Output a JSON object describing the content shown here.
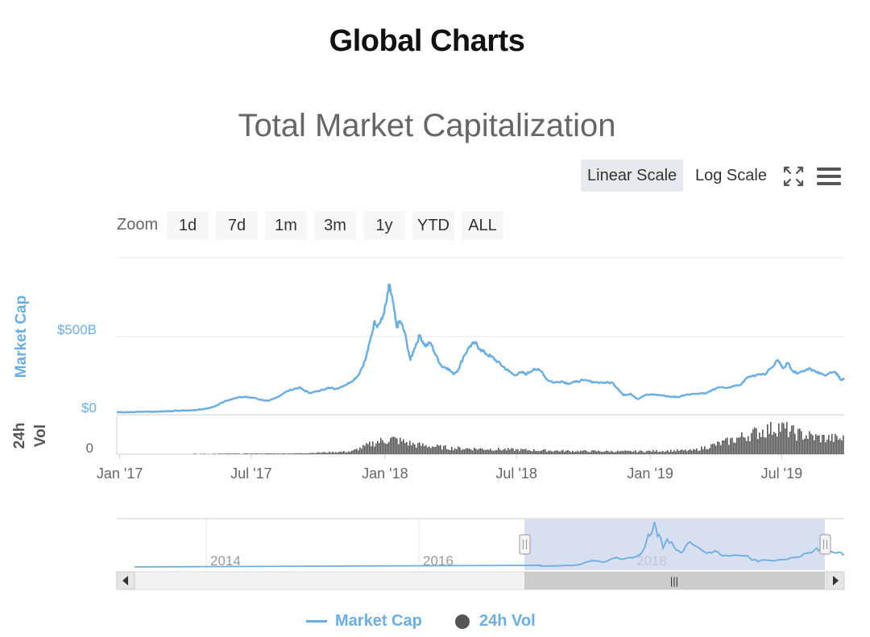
{
  "page": {
    "title": "Global Charts"
  },
  "chart": {
    "title": "Total Market Capitalization",
    "scale_buttons": [
      {
        "label": "Linear Scale",
        "active": true
      },
      {
        "label": "Log Scale",
        "active": false
      }
    ],
    "zoom": {
      "label": "Zoom",
      "buttons": [
        "1d",
        "7d",
        "1m",
        "3m",
        "1y",
        "YTD",
        "ALL"
      ]
    },
    "y_axis_label": "Market Cap",
    "y_ticks": [
      "$500B",
      "$0"
    ],
    "vol_axis_label": "24h Vol",
    "vol_ticks": [
      "0"
    ],
    "x_ticks": [
      "Jan '17",
      "Jul '17",
      "Jan '18",
      "Jul '18",
      "Jan '19",
      "Jul '19"
    ],
    "navigator_ticks": [
      "2014",
      "2016",
      "2018"
    ],
    "navigator_handle_glyph": "|||",
    "colors": {
      "market_cap": "#6aaee3",
      "volume": "#555555",
      "navigator_mask": "#c9d4ec"
    },
    "legend": [
      {
        "label": "Market Cap",
        "marker": "line"
      },
      {
        "label": "24h Vol",
        "marker": "circle"
      }
    ]
  },
  "chart_data": {
    "type": "line",
    "title": "Total Market Capitalization",
    "xlabel": "",
    "ylabel": "Market Cap",
    "x_range": [
      "2016-12-28",
      "2019-09-25"
    ],
    "ylim": [
      0,
      800
    ],
    "y_unit": "billion USD",
    "grid": true,
    "legend_position": "bottom-center",
    "series": [
      {
        "name": "Market Cap",
        "color": "#6aaee3",
        "points": [
          [
            "2016-12-28",
            17
          ],
          [
            "2017-01-15",
            17
          ],
          [
            "2017-02-01",
            19
          ],
          [
            "2017-02-20",
            20
          ],
          [
            "2017-03-10",
            23
          ],
          [
            "2017-03-25",
            26
          ],
          [
            "2017-04-10",
            28
          ],
          [
            "2017-04-25",
            35
          ],
          [
            "2017-05-10",
            50
          ],
          [
            "2017-05-25",
            85
          ],
          [
            "2017-06-05",
            100
          ],
          [
            "2017-06-15",
            115
          ],
          [
            "2017-06-25",
            112
          ],
          [
            "2017-07-05",
            108
          ],
          [
            "2017-07-15",
            95
          ],
          [
            "2017-07-25",
            88
          ],
          [
            "2017-08-05",
            110
          ],
          [
            "2017-08-15",
            140
          ],
          [
            "2017-08-25",
            160
          ],
          [
            "2017-09-05",
            175
          ],
          [
            "2017-09-12",
            155
          ],
          [
            "2017-09-20",
            140
          ],
          [
            "2017-10-01",
            150
          ],
          [
            "2017-10-15",
            175
          ],
          [
            "2017-10-25",
            165
          ],
          [
            "2017-11-05",
            185
          ],
          [
            "2017-11-15",
            210
          ],
          [
            "2017-11-25",
            250
          ],
          [
            "2017-12-05",
            350
          ],
          [
            "2017-12-12",
            480
          ],
          [
            "2017-12-18",
            600
          ],
          [
            "2017-12-22",
            570
          ],
          [
            "2017-12-28",
            610
          ],
          [
            "2018-01-03",
            720
          ],
          [
            "2018-01-07",
            830
          ],
          [
            "2018-01-12",
            720
          ],
          [
            "2018-01-17",
            560
          ],
          [
            "2018-01-22",
            600
          ],
          [
            "2018-01-28",
            530
          ],
          [
            "2018-02-05",
            350
          ],
          [
            "2018-02-10",
            420
          ],
          [
            "2018-02-18",
            510
          ],
          [
            "2018-02-25",
            440
          ],
          [
            "2018-03-05",
            460
          ],
          [
            "2018-03-12",
            380
          ],
          [
            "2018-03-20",
            310
          ],
          [
            "2018-03-28",
            300
          ],
          [
            "2018-04-05",
            260
          ],
          [
            "2018-04-12",
            290
          ],
          [
            "2018-04-20",
            380
          ],
          [
            "2018-04-28",
            440
          ],
          [
            "2018-05-05",
            460
          ],
          [
            "2018-05-12",
            420
          ],
          [
            "2018-05-20",
            390
          ],
          [
            "2018-05-28",
            370
          ],
          [
            "2018-06-05",
            340
          ],
          [
            "2018-06-12",
            310
          ],
          [
            "2018-06-20",
            280
          ],
          [
            "2018-06-28",
            255
          ],
          [
            "2018-07-08",
            270
          ],
          [
            "2018-07-15",
            260
          ],
          [
            "2018-07-25",
            295
          ],
          [
            "2018-08-05",
            275
          ],
          [
            "2018-08-12",
            225
          ],
          [
            "2018-08-22",
            205
          ],
          [
            "2018-09-01",
            215
          ],
          [
            "2018-09-10",
            200
          ],
          [
            "2018-09-20",
            210
          ],
          [
            "2018-10-01",
            220
          ],
          [
            "2018-10-15",
            210
          ],
          [
            "2018-10-30",
            205
          ],
          [
            "2018-11-10",
            205
          ],
          [
            "2018-11-18",
            165
          ],
          [
            "2018-11-25",
            125
          ],
          [
            "2018-12-05",
            135
          ],
          [
            "2018-12-15",
            100
          ],
          [
            "2018-12-25",
            125
          ],
          [
            "2019-01-05",
            130
          ],
          [
            "2019-01-15",
            125
          ],
          [
            "2019-01-30",
            115
          ],
          [
            "2019-02-08",
            113
          ],
          [
            "2019-02-20",
            130
          ],
          [
            "2019-03-05",
            135
          ],
          [
            "2019-03-20",
            140
          ],
          [
            "2019-04-02",
            170
          ],
          [
            "2019-04-20",
            175
          ],
          [
            "2019-05-05",
            190
          ],
          [
            "2019-05-15",
            240
          ],
          [
            "2019-05-30",
            260
          ],
          [
            "2019-06-10",
            265
          ],
          [
            "2019-06-26",
            350
          ],
          [
            "2019-07-02",
            300
          ],
          [
            "2019-07-10",
            330
          ],
          [
            "2019-07-18",
            270
          ],
          [
            "2019-07-28",
            275
          ],
          [
            "2019-08-08",
            300
          ],
          [
            "2019-08-18",
            270
          ],
          [
            "2019-08-28",
            255
          ],
          [
            "2019-09-08",
            270
          ],
          [
            "2019-09-15",
            265
          ],
          [
            "2019-09-20",
            225
          ],
          [
            "2019-09-25",
            225
          ]
        ]
      },
      {
        "name": "24h Vol",
        "color": "#555555",
        "type": "column",
        "note_unit": "relative",
        "points": [
          [
            "2017-01-01",
            0
          ],
          [
            "2017-06-01",
            0.02
          ],
          [
            "2017-09-01",
            0.03
          ],
          [
            "2017-11-15",
            0.1
          ],
          [
            "2017-12-20",
            0.45
          ],
          [
            "2018-01-10",
            0.55
          ],
          [
            "2018-02-10",
            0.35
          ],
          [
            "2018-04-01",
            0.22
          ],
          [
            "2018-06-01",
            0.18
          ],
          [
            "2018-09-01",
            0.12
          ],
          [
            "2018-12-01",
            0.1
          ],
          [
            "2019-03-01",
            0.14
          ],
          [
            "2019-04-15",
            0.45
          ],
          [
            "2019-05-15",
            0.7
          ],
          [
            "2019-06-26",
            1.0
          ],
          [
            "2019-07-20",
            0.75
          ],
          [
            "2019-08-20",
            0.6
          ],
          [
            "2019-09-25",
            0.55
          ]
        ]
      }
    ],
    "navigator": {
      "x_ticks": [
        "2014",
        "2016",
        "2018"
      ],
      "selected_range": [
        "2016-12-28",
        "2019-09-25"
      ]
    }
  }
}
